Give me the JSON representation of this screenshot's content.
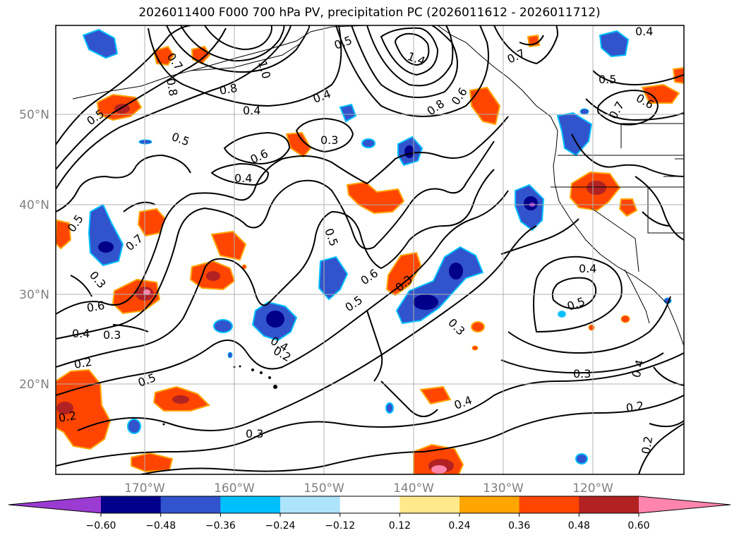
{
  "title": "2026011400 F000 700 hPa PV, precipitation PC (2026011612 - 2026011712)",
  "map": {
    "lat_labels": [
      "50°N",
      "40°N",
      "30°N",
      "20°N"
    ],
    "lon_labels": [
      "170°W",
      "160°W",
      "150°W",
      "140°W",
      "130°W",
      "120°W"
    ],
    "grid": true
  },
  "colorbar": {
    "ticks": [
      "−0.60",
      "−0.48",
      "−0.36",
      "−0.24",
      "−0.12",
      "0.12",
      "0.24",
      "0.36",
      "0.48",
      "0.60"
    ],
    "colors": [
      "#9a3bd1",
      "#00008b",
      "#3153cc",
      "#00bfff",
      "#ade3fb",
      "#ffffff",
      "#ffe98a",
      "#ffa500",
      "#ff4500",
      "#b22222",
      "#ff85ad"
    ]
  },
  "contour_labels": [
    "0.7",
    "1.0",
    "0.8",
    "0.8",
    "0.4",
    "0.4",
    "0.5",
    "0.3",
    "0.6",
    "0.4",
    "0.5",
    "0.7",
    "0.5",
    "0.6",
    "0.4",
    "0.3",
    "0.2",
    "0.5",
    "0.2",
    "0.3",
    "0.5",
    "0.6",
    "0.3",
    "0.5",
    "0.4",
    "0.5",
    "1.4",
    "0.8",
    "0.6",
    "0.7",
    "0.5",
    "0.6",
    "0.7",
    "0.4",
    "0.4",
    "0.5",
    "0.3",
    "0.3",
    "0.2",
    "0.4",
    "0.4",
    "0.3",
    "0.2",
    "0.2"
  ]
}
